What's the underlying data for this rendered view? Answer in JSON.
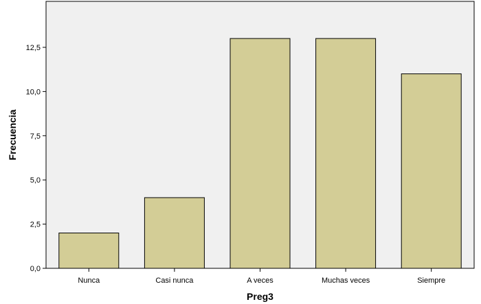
{
  "chart_data": {
    "type": "bar",
    "categories": [
      "Nunca",
      "Casi nunca",
      "A veces",
      "Muchas veces",
      "Siempre"
    ],
    "values": [
      2,
      4,
      13,
      13,
      11
    ],
    "xlabel": "Preg3",
    "ylabel": "Frecuencia",
    "ylim": [
      0,
      15.1
    ],
    "yticks": [
      "0,0",
      "2,5",
      "5,0",
      "7,5",
      "10,0",
      "12,5"
    ],
    "ytick_values": [
      0,
      2.5,
      5,
      7.5,
      10,
      12.5
    ],
    "grid": false,
    "colors": {
      "plot_background": "#f0f0f0",
      "bar_fill": "#d3cd96",
      "bar_stroke": "#000000",
      "axis": "#000000"
    }
  }
}
